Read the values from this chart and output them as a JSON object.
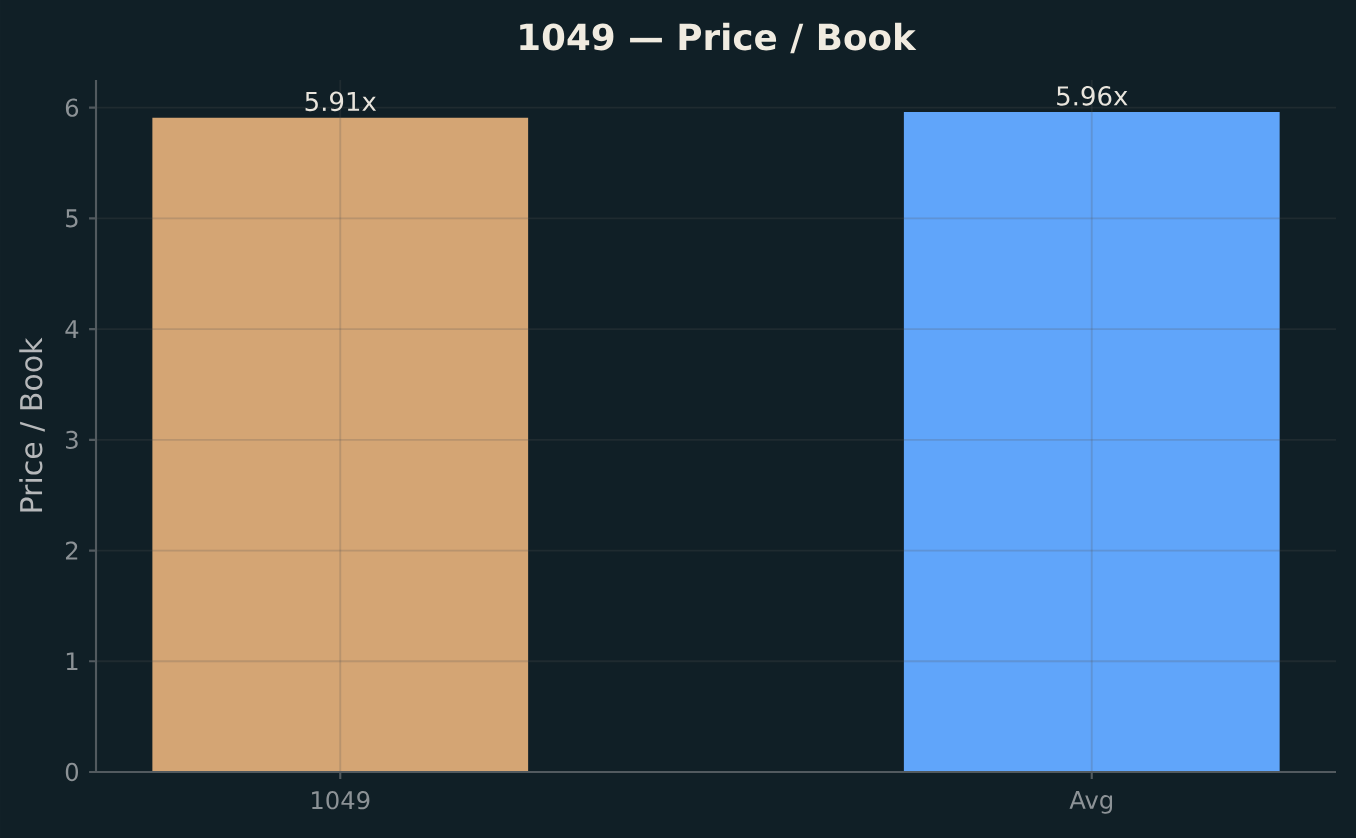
{
  "chart_data": {
    "type": "bar",
    "title": "1049 — Price / Book",
    "ylabel": "Price / Book",
    "categories": [
      "1049",
      "Avg"
    ],
    "values": [
      5.91,
      5.96
    ],
    "colors": [
      "#d4a574",
      "#60a5fa"
    ],
    "value_labels": [
      "5.91x",
      "5.96x"
    ],
    "ylim": [
      0,
      6.25
    ],
    "yticks": [
      0,
      1,
      2,
      3,
      4,
      5,
      6
    ],
    "grid": true
  }
}
